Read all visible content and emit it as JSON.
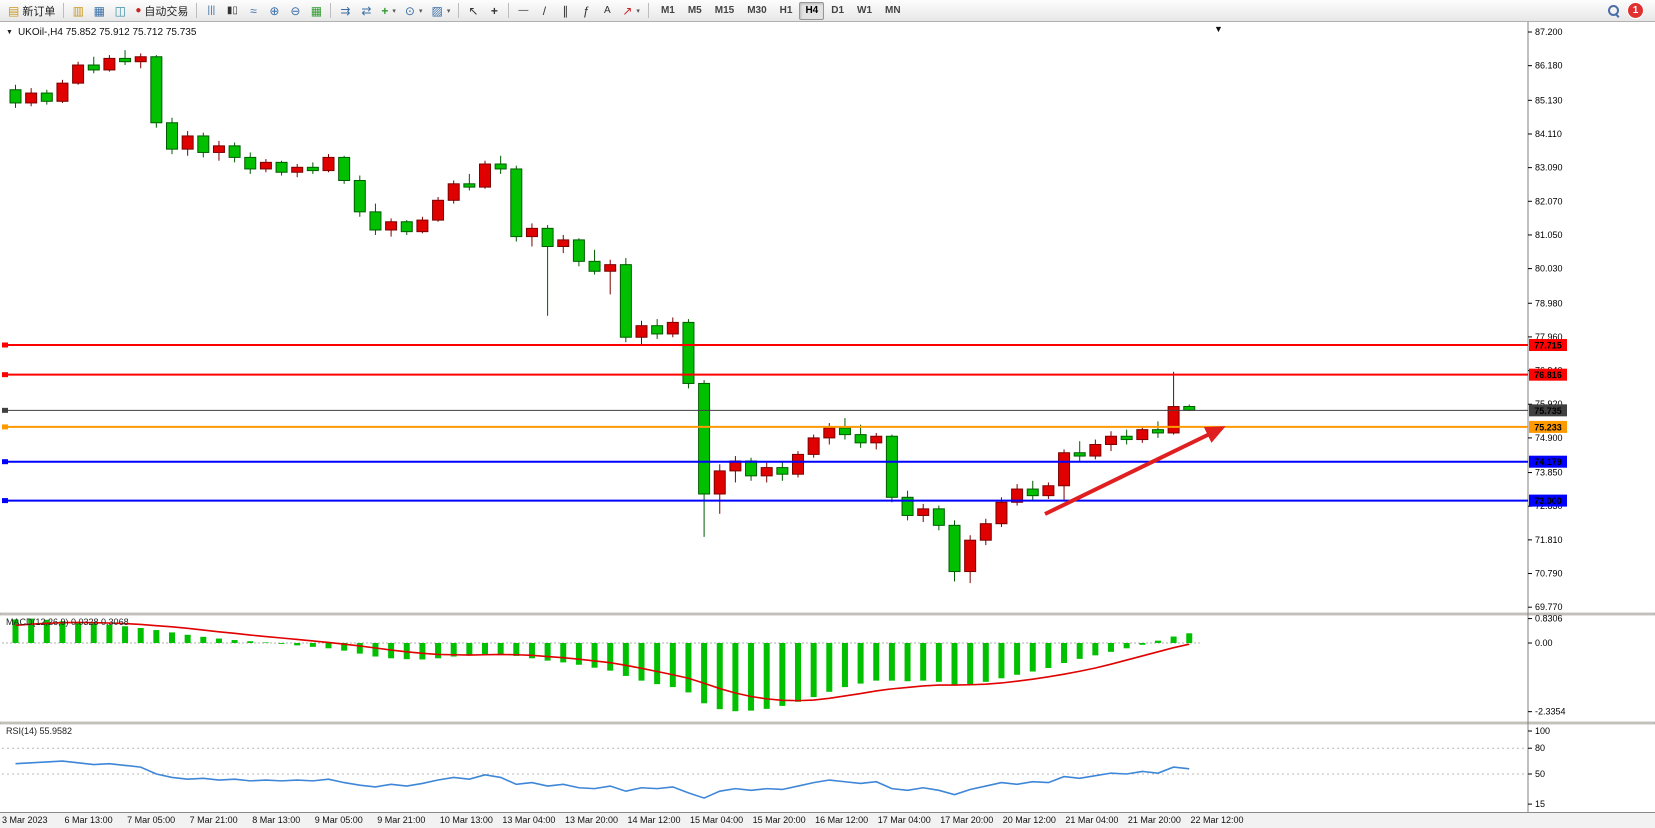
{
  "toolbar": {
    "new_order_label": "新订单",
    "auto_trading_label": "自动交易",
    "timeframes": [
      "M1",
      "M5",
      "M15",
      "M30",
      "H1",
      "H4",
      "D1",
      "W1",
      "MN"
    ],
    "active_timeframe": "H4",
    "notification_count": "1"
  },
  "icons": {
    "new_order": "▤",
    "market_watch": "▥",
    "charts": "▦",
    "navigator": "◫",
    "auto_trading": "●",
    "chart_bars": "|||",
    "chart_candles": "▮▯",
    "chart_line": "≈",
    "zoom_in": "⊕",
    "zoom_out": "⊖",
    "tile_windows": "▦",
    "auto_scroll": "⇉",
    "chart_shift": "⇄",
    "indicators": "+",
    "periods": "⊙",
    "templates": "▨",
    "cursor": "↖",
    "crosshair": "+",
    "horizontal_line": "—",
    "trendline": "/",
    "channel": "∥",
    "fibonacci": "ƒ",
    "text_tool": "A",
    "arrows_tool": "↗",
    "caret": "▾",
    "collapse": "▼",
    "shift_marker": "▼"
  },
  "chart": {
    "symbol_info": "UKOil-,H4  75.852 75.912 75.712 75.735",
    "price_axis": [
      "87.200",
      "86.180",
      "85.130",
      "84.110",
      "83.090",
      "82.070",
      "81.050",
      "80.030",
      "78.980",
      "77.960",
      "76.940",
      "75.920",
      "74.900",
      "73.850",
      "72.830",
      "71.810",
      "70.790",
      "69.770"
    ],
    "time_axis": [
      "3 Mar 2023",
      "6 Mar 13:00",
      "7 Mar 05:00",
      "7 Mar 21:00",
      "8 Mar 13:00",
      "9 Mar 05:00",
      "9 Mar 21:00",
      "10 Mar 13:00",
      "13 Mar 04:00",
      "13 Mar 20:00",
      "14 Mar 12:00",
      "15 Mar 04:00",
      "15 Mar 20:00",
      "16 Mar 12:00",
      "17 Mar 04:00",
      "17 Mar 20:00",
      "20 Mar 12:00",
      "21 Mar 04:00",
      "21 Mar 20:00",
      "22 Mar 12:00"
    ]
  },
  "macd": {
    "label": "MACD(12,26,9) 0.0328 0.3068",
    "axis": [
      "0.8306",
      "0.00",
      "-2.3354"
    ]
  },
  "rsi": {
    "label": "RSI(14) 55.9582",
    "axis": [
      "100",
      "80",
      "50",
      "15"
    ]
  },
  "colors": {
    "candle_up": "#E00000",
    "candle_down": "#00C000",
    "macd_hist": "#00C000",
    "macd_signal": "#E00000",
    "rsi_line": "#3E86D8",
    "arrow": "#E02020"
  },
  "chart_data": {
    "type": "candlestick",
    "symbol": "UKOil-",
    "timeframe": "H4",
    "last_ohlc": {
      "open": "75.852",
      "high": "75.912",
      "low": "75.712",
      "close": "75.735"
    },
    "price_axis_range": [
      69.59,
      87.5
    ],
    "candles": [
      [
        85.45,
        85.6,
        84.9,
        85.05
      ],
      [
        85.05,
        85.5,
        84.95,
        85.35
      ],
      [
        85.35,
        85.45,
        85.0,
        85.1
      ],
      [
        85.1,
        85.75,
        85.05,
        85.65
      ],
      [
        85.65,
        86.3,
        85.6,
        86.2
      ],
      [
        86.2,
        86.45,
        85.95,
        86.05
      ],
      [
        86.05,
        86.5,
        86.0,
        86.4
      ],
      [
        86.4,
        86.65,
        86.2,
        86.3
      ],
      [
        86.3,
        86.55,
        86.1,
        86.45
      ],
      [
        86.45,
        86.5,
        84.3,
        84.45
      ],
      [
        84.45,
        84.6,
        83.5,
        83.65
      ],
      [
        83.65,
        84.2,
        83.45,
        84.05
      ],
      [
        84.05,
        84.15,
        83.4,
        83.55
      ],
      [
        83.55,
        83.9,
        83.3,
        83.75
      ],
      [
        83.75,
        83.85,
        83.25,
        83.4
      ],
      [
        83.4,
        83.55,
        82.9,
        83.05
      ],
      [
        83.05,
        83.35,
        82.95,
        83.25
      ],
      [
        83.25,
        83.3,
        82.85,
        82.95
      ],
      [
        82.95,
        83.2,
        82.8,
        83.1
      ],
      [
        83.1,
        83.25,
        82.9,
        83.0
      ],
      [
        83.0,
        83.5,
        82.95,
        83.4
      ],
      [
        83.4,
        83.45,
        82.6,
        82.7
      ],
      [
        82.7,
        82.85,
        81.6,
        81.75
      ],
      [
        81.75,
        82.0,
        81.05,
        81.2
      ],
      [
        81.2,
        81.55,
        81.0,
        81.45
      ],
      [
        81.45,
        81.5,
        81.05,
        81.15
      ],
      [
        81.15,
        81.6,
        81.1,
        81.5
      ],
      [
        81.5,
        82.2,
        81.45,
        82.1
      ],
      [
        82.1,
        82.7,
        82.0,
        82.6
      ],
      [
        82.6,
        82.9,
        82.4,
        82.5
      ],
      [
        82.5,
        83.3,
        82.45,
        83.2
      ],
      [
        83.2,
        83.45,
        82.9,
        83.05
      ],
      [
        83.05,
        83.15,
        80.85,
        81.0
      ],
      [
        81.0,
        81.4,
        80.7,
        81.25
      ],
      [
        81.25,
        81.35,
        78.6,
        80.7
      ],
      [
        80.7,
        81.05,
        80.5,
        80.9
      ],
      [
        80.9,
        80.95,
        80.1,
        80.25
      ],
      [
        80.25,
        80.6,
        79.85,
        79.95
      ],
      [
        79.95,
        80.3,
        79.25,
        80.15
      ],
      [
        80.15,
        80.35,
        77.8,
        77.95
      ],
      [
        77.95,
        78.45,
        77.7,
        78.3
      ],
      [
        78.3,
        78.5,
        77.9,
        78.05
      ],
      [
        78.05,
        78.55,
        77.95,
        78.4
      ],
      [
        78.4,
        78.5,
        76.4,
        76.55
      ],
      [
        76.55,
        76.65,
        71.9,
        73.2
      ],
      [
        73.2,
        74.1,
        72.6,
        73.9
      ],
      [
        73.9,
        74.35,
        73.55,
        74.2
      ],
      [
        74.2,
        74.3,
        73.6,
        73.75
      ],
      [
        73.75,
        74.15,
        73.55,
        74.0
      ],
      [
        74.0,
        74.2,
        73.6,
        73.8
      ],
      [
        73.8,
        74.5,
        73.7,
        74.4
      ],
      [
        74.4,
        75.0,
        74.3,
        74.9
      ],
      [
        74.9,
        75.35,
        74.7,
        75.2
      ],
      [
        75.2,
        75.5,
        74.85,
        75.0
      ],
      [
        75.0,
        75.3,
        74.6,
        74.75
      ],
      [
        74.75,
        75.05,
        74.55,
        74.95
      ],
      [
        74.95,
        75.0,
        72.95,
        73.1
      ],
      [
        73.1,
        73.3,
        72.4,
        72.55
      ],
      [
        72.55,
        72.9,
        72.35,
        72.75
      ],
      [
        72.75,
        72.85,
        72.1,
        72.25
      ],
      [
        72.25,
        72.4,
        70.55,
        70.85
      ],
      [
        70.85,
        71.95,
        70.5,
        71.8
      ],
      [
        71.8,
        72.45,
        71.65,
        72.3
      ],
      [
        72.3,
        73.1,
        72.2,
        72.95
      ],
      [
        72.95,
        73.5,
        72.85,
        73.35
      ],
      [
        73.35,
        73.6,
        73.0,
        73.15
      ],
      [
        73.15,
        73.55,
        73.05,
        73.45
      ],
      [
        73.45,
        74.55,
        73.0,
        74.45
      ],
      [
        74.45,
        74.8,
        74.2,
        74.35
      ],
      [
        74.35,
        74.85,
        74.25,
        74.7
      ],
      [
        74.7,
        75.1,
        74.5,
        74.95
      ],
      [
        74.95,
        75.15,
        74.7,
        74.85
      ],
      [
        74.85,
        75.25,
        74.75,
        75.15
      ],
      [
        75.15,
        75.4,
        74.9,
        75.05
      ],
      [
        75.05,
        76.9,
        75.0,
        75.85
      ],
      [
        75.852,
        75.912,
        75.712,
        75.735
      ]
    ],
    "indicators": {
      "macd": {
        "params": "12,26,9",
        "display_values": [
          "0.0328",
          "0.3068"
        ],
        "axis_range": [
          -2.3354,
          0.8306
        ],
        "values": [
          0.8,
          0.83,
          0.79,
          0.74,
          0.7,
          0.66,
          0.62,
          0.57,
          0.51,
          0.44,
          0.36,
          0.28,
          0.21,
          0.15,
          0.1,
          0.06,
          0.02,
          -0.03,
          -0.08,
          -0.13,
          -0.18,
          -0.26,
          -0.36,
          -0.46,
          -0.52,
          -0.55,
          -0.56,
          -0.52,
          -0.46,
          -0.42,
          -0.38,
          -0.37,
          -0.44,
          -0.52,
          -0.6,
          -0.66,
          -0.74,
          -0.84,
          -0.94,
          -1.12,
          -1.28,
          -1.4,
          -1.5,
          -1.68,
          -2.05,
          -2.25,
          -2.32,
          -2.3,
          -2.24,
          -2.14,
          -2.0,
          -1.84,
          -1.66,
          -1.5,
          -1.38,
          -1.28,
          -1.28,
          -1.3,
          -1.28,
          -1.32,
          -1.42,
          -1.4,
          -1.32,
          -1.2,
          -1.08,
          -0.97,
          -0.85,
          -0.68,
          -0.54,
          -0.42,
          -0.3,
          -0.18,
          -0.06,
          0.08,
          0.22,
          0.33
        ],
        "signal": [
          0.6,
          0.64,
          0.67,
          0.69,
          0.7,
          0.69,
          0.68,
          0.66,
          0.63,
          0.59,
          0.55,
          0.5,
          0.44,
          0.38,
          0.33,
          0.27,
          0.22,
          0.17,
          0.12,
          0.07,
          0.02,
          -0.04,
          -0.1,
          -0.17,
          -0.24,
          -0.3,
          -0.35,
          -0.39,
          -0.4,
          -0.41,
          -0.4,
          -0.39,
          -0.4,
          -0.42,
          -0.46,
          -0.5,
          -0.55,
          -0.61,
          -0.67,
          -0.76,
          -0.86,
          -0.97,
          -1.08,
          -1.2,
          -1.37,
          -1.55,
          -1.7,
          -1.82,
          -1.9,
          -1.95,
          -1.96,
          -1.94,
          -1.88,
          -1.8,
          -1.72,
          -1.63,
          -1.56,
          -1.51,
          -1.46,
          -1.43,
          -1.43,
          -1.42,
          -1.4,
          -1.36,
          -1.3,
          -1.23,
          -1.15,
          -1.06,
          -0.96,
          -0.85,
          -0.72,
          -0.58,
          -0.44,
          -0.3,
          -0.16,
          -0.04
        ]
      },
      "rsi": {
        "params": "14",
        "current_value": 55.9582,
        "levels": [
          80,
          50
        ],
        "values": [
          62,
          63,
          64,
          65,
          63,
          61,
          62,
          60,
          58,
          50,
          46,
          44,
          45,
          43,
          44,
          42,
          43,
          42,
          43,
          42,
          44,
          40,
          37,
          35,
          38,
          36,
          39,
          43,
          46,
          44,
          49,
          46,
          38,
          40,
          36,
          38,
          34,
          33,
          36,
          30,
          34,
          33,
          35,
          28,
          22,
          30,
          33,
          31,
          33,
          32,
          36,
          40,
          43,
          41,
          39,
          41,
          33,
          31,
          34,
          31,
          26,
          32,
          36,
          40,
          38,
          41,
          40,
          47,
          45,
          48,
          51,
          50,
          53,
          51,
          58,
          56
        ]
      }
    },
    "horizontal_lines": [
      {
        "price": 77.715,
        "label": "77.715",
        "color": "#FF0000",
        "width": 2
      },
      {
        "price": 76.816,
        "label": "76.816",
        "color": "#FF0000",
        "width": 2
      },
      {
        "price": 75.735,
        "label": "75.735",
        "color": "#404040",
        "width": 1
      },
      {
        "price": 75.233,
        "label": "75.233",
        "color": "#FF9900",
        "width": 2
      },
      {
        "price": 74.179,
        "label": "74.179",
        "color": "#0000FF",
        "width": 2
      },
      {
        "price": 73.0,
        "label": "73.000",
        "color": "#0000FF",
        "width": 2
      }
    ],
    "trend_arrow": {
      "color": "#E02020",
      "direction": "up-right"
    }
  }
}
